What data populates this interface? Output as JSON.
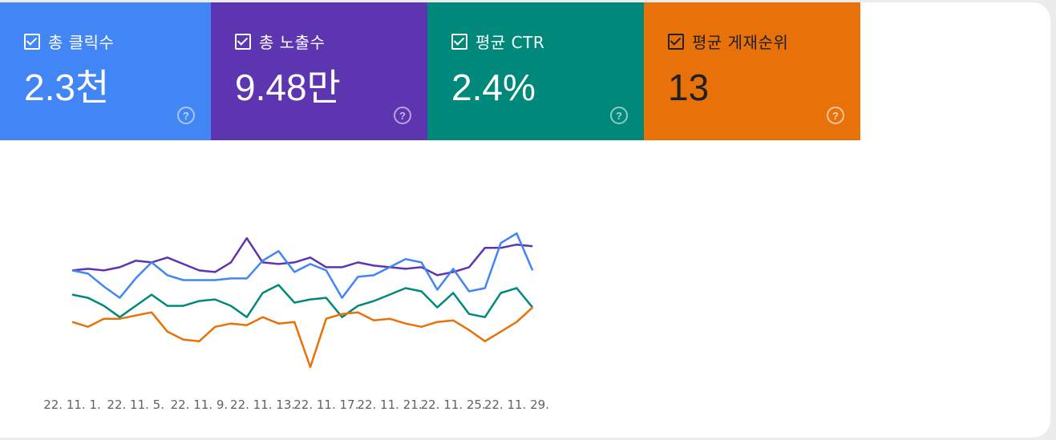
{
  "metrics": [
    {
      "label": "총 클릭수",
      "value": "2.3천",
      "color": "#4285f4"
    },
    {
      "label": "총 노출수",
      "value": "9.48만",
      "color": "#5e35b1"
    },
    {
      "label": "평균 CTR",
      "value": "2.4%",
      "color": "#00897b"
    },
    {
      "label": "평균 게재순위",
      "value": "13",
      "color": "#e8710a"
    }
  ],
  "help_glyph": "?",
  "chart_data": {
    "type": "line",
    "x_tick_labels": [
      "22. 11. 1.",
      "22. 11. 5.",
      "22. 11. 9.",
      "22. 11. 13.",
      "22. 11. 17.",
      "22. 11. 21.",
      "22. 11. 25.",
      "22. 11. 29."
    ],
    "x_tick_indices": [
      0,
      4,
      8,
      12,
      16,
      20,
      24,
      28
    ],
    "grid": false,
    "value_scale": "relative (no y-axis shown)",
    "y_range": [
      0,
      100
    ],
    "series": [
      {
        "color": "#5e35b1",
        "values": [
          60,
          61,
          60,
          62,
          66,
          65,
          68,
          64,
          60,
          59,
          65,
          80,
          65,
          64,
          65,
          68,
          62,
          62,
          65,
          63,
          62,
          61,
          62,
          57,
          59,
          62,
          74,
          74,
          76,
          75
        ]
      },
      {
        "color": "#4285f4",
        "values": [
          60,
          58,
          50,
          43,
          55,
          65,
          57,
          54,
          54,
          54,
          55,
          55,
          66,
          72,
          59,
          64,
          60,
          43,
          56,
          57,
          62,
          67,
          65,
          48,
          61,
          47,
          49,
          77,
          83,
          60
        ]
      },
      {
        "color": "#00897b",
        "values": [
          45,
          43,
          38,
          31,
          38,
          45,
          38,
          38,
          41,
          42,
          38,
          31,
          46,
          51,
          40,
          42,
          43,
          31,
          38,
          41,
          45,
          49,
          47,
          37,
          46,
          33,
          31,
          46,
          49,
          37
        ]
      },
      {
        "color": "#e8710a",
        "values": [
          28,
          25,
          30,
          30,
          32,
          34,
          22,
          17,
          16,
          25,
          27,
          26,
          31,
          27,
          28,
          0,
          30,
          33,
          34,
          29,
          30,
          27,
          25,
          28,
          29,
          23,
          16,
          22,
          28,
          37
        ]
      }
    ]
  }
}
